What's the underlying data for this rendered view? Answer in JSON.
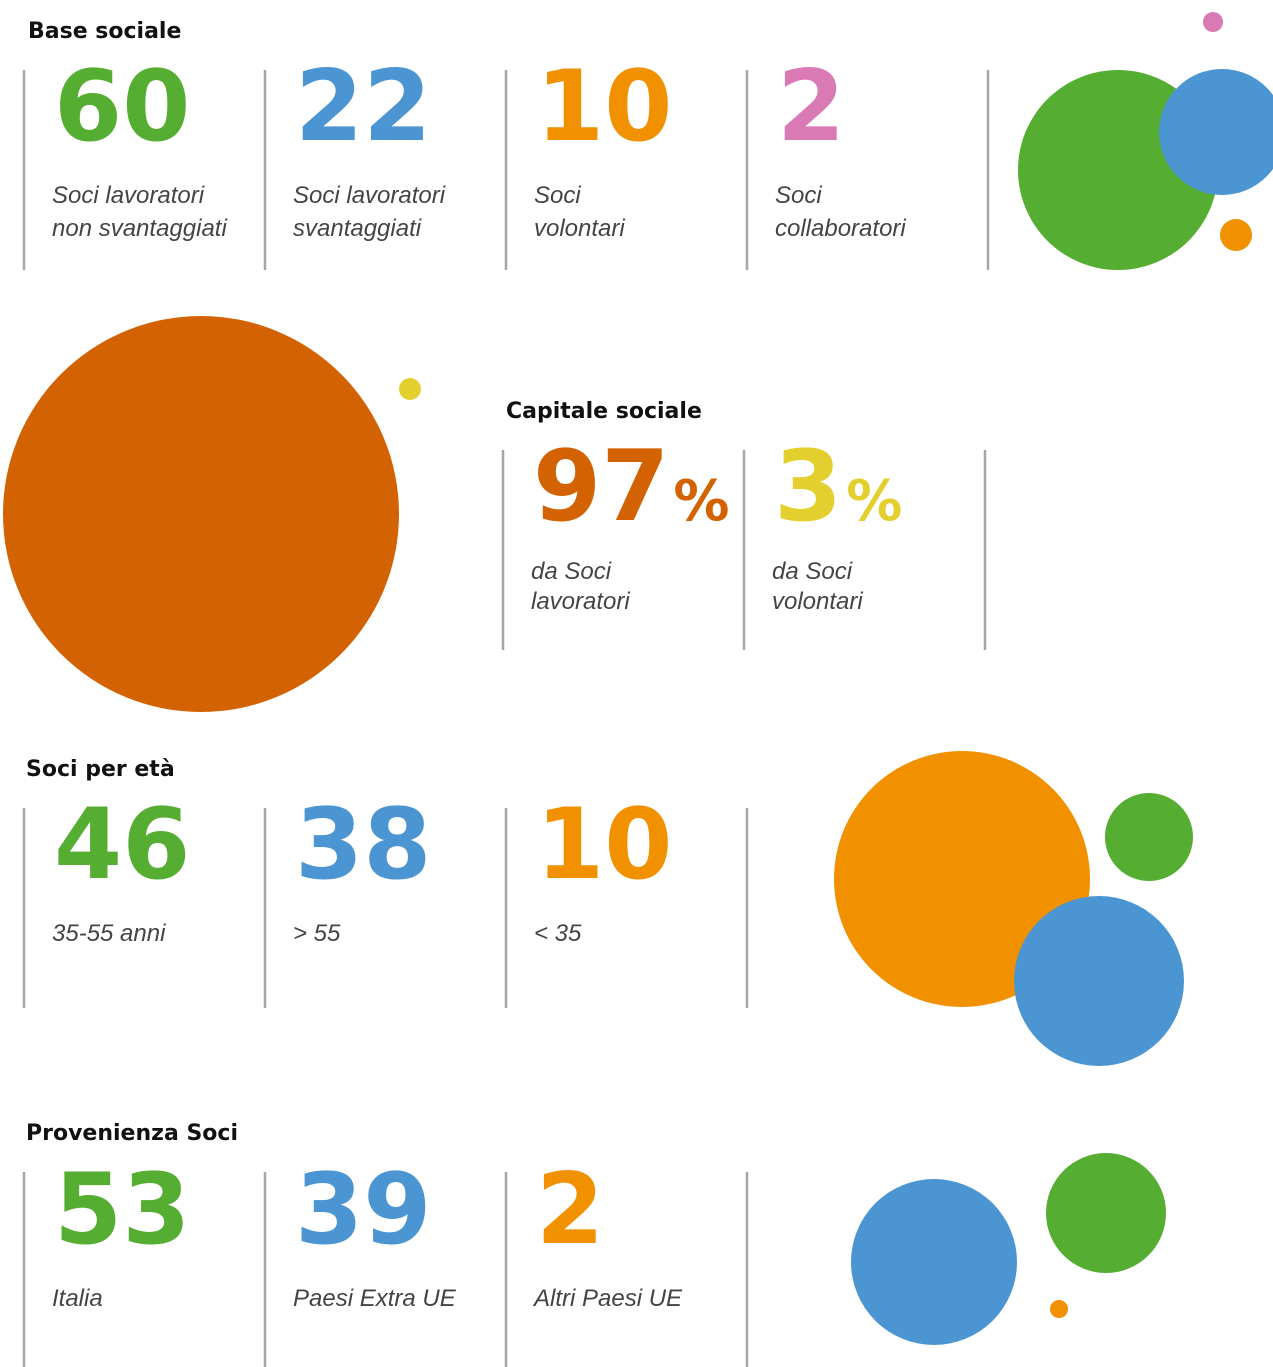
{
  "sections": [
    {
      "title": "Base sociale",
      "items": [
        {
          "number": "60",
          "label": [
            "Soci lavoratori",
            "non svantaggiati"
          ],
          "color": "#55ad32"
        },
        {
          "number": "22",
          "label": [
            "Soci lavoratori",
            "svantaggiati"
          ],
          "color": "#4a95d2"
        },
        {
          "number": "10",
          "label": [
            "Soci",
            "volontari"
          ],
          "color": "#f29100"
        },
        {
          "number": "2",
          "label": [
            "Soci",
            "collaboratori"
          ],
          "color": "#d97ab4"
        }
      ]
    },
    {
      "title": "Capitale sociale",
      "items": [
        {
          "number": "97",
          "unit": "%",
          "label": [
            "da Soci",
            "lavoratori"
          ],
          "color": "#d36302"
        },
        {
          "number": "3",
          "unit": "%",
          "label": [
            "da Soci",
            "volontari"
          ],
          "color": "#e3cf2e"
        }
      ]
    },
    {
      "title": "Soci per età",
      "items": [
        {
          "number": "46",
          "label": [
            "35-55 anni"
          ],
          "color": "#55ad32"
        },
        {
          "number": "38",
          "label": [
            "> 55"
          ],
          "color": "#4a95d2"
        },
        {
          "number": "10",
          "label": [
            "< 35"
          ],
          "color": "#f29100"
        }
      ]
    },
    {
      "title": "Provenienza Soci",
      "items": [
        {
          "number": "53",
          "label": [
            "Italia"
          ],
          "color": "#55ad32"
        },
        {
          "number": "39",
          "label": [
            "Paesi Extra UE"
          ],
          "color": "#4a95d2"
        },
        {
          "number": "2",
          "label": [
            "Altri Paesi UE"
          ],
          "color": "#f29100"
        }
      ]
    }
  ]
}
